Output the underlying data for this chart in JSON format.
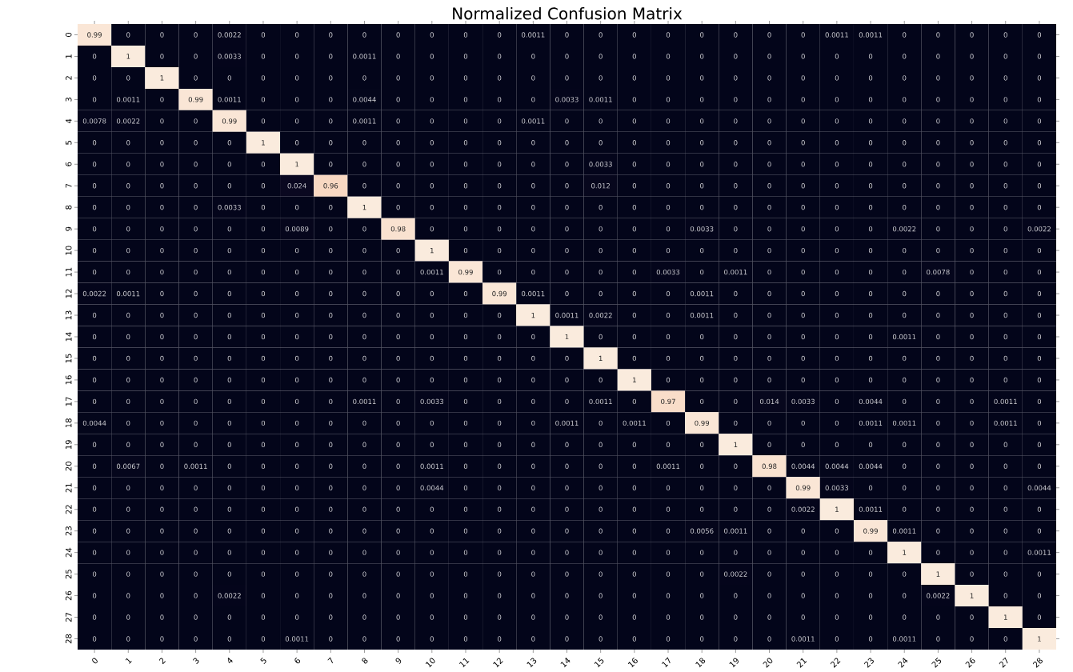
{
  "chart_data": {
    "type": "heatmap",
    "title": "Normalized Confusion Matrix",
    "categories": [
      "0",
      "1",
      "2",
      "3",
      "4",
      "5",
      "6",
      "7",
      "8",
      "9",
      "10",
      "11",
      "12",
      "13",
      "14",
      "15",
      "16",
      "17",
      "18",
      "19",
      "20",
      "21",
      "22",
      "23",
      "24",
      "25",
      "26",
      "27",
      "28"
    ],
    "y_categories": [
      "0",
      "1",
      "2",
      "3",
      "4",
      "5",
      "6",
      "7",
      "8",
      "9",
      "10",
      "11",
      "12",
      "13",
      "14",
      "15",
      "16",
      "17",
      "18",
      "19",
      "20",
      "21",
      "22",
      "23",
      "24",
      "25",
      "26",
      "27",
      "28"
    ],
    "data_labels": true,
    "cells": [
      [
        0.99,
        0,
        0,
        0,
        0.0022,
        0,
        0,
        0,
        0,
        0,
        0,
        0,
        0,
        0.0011,
        0,
        0,
        0,
        0,
        0,
        0,
        0,
        0,
        0.0011,
        0.0011,
        0,
        0,
        0,
        0,
        0
      ],
      [
        0,
        1,
        0,
        0,
        0.0033,
        0,
        0,
        0,
        0.0011,
        0,
        0,
        0,
        0,
        0,
        0,
        0,
        0,
        0,
        0,
        0,
        0,
        0,
        0,
        0,
        0,
        0,
        0,
        0,
        0
      ],
      [
        0,
        0,
        1,
        0,
        0,
        0,
        0,
        0,
        0,
        0,
        0,
        0,
        0,
        0,
        0,
        0,
        0,
        0,
        0,
        0,
        0,
        0,
        0,
        0,
        0,
        0,
        0,
        0,
        0
      ],
      [
        0,
        0.0011,
        0,
        0.99,
        0.0011,
        0,
        0,
        0,
        0.0044,
        0,
        0,
        0,
        0,
        0,
        0.0033,
        0.0011,
        0,
        0,
        0,
        0,
        0,
        0,
        0,
        0,
        0,
        0,
        0,
        0,
        0
      ],
      [
        0.0078,
        0.0022,
        0,
        0,
        0.99,
        0,
        0,
        0,
        0.0011,
        0,
        0,
        0,
        0,
        0.0011,
        0,
        0,
        0,
        0,
        0,
        0,
        0,
        0,
        0,
        0,
        0,
        0,
        0,
        0,
        0
      ],
      [
        0,
        0,
        0,
        0,
        0,
        1,
        0,
        0,
        0,
        0,
        0,
        0,
        0,
        0,
        0,
        0,
        0,
        0,
        0,
        0,
        0,
        0,
        0,
        0,
        0,
        0,
        0,
        0,
        0
      ],
      [
        0,
        0,
        0,
        0,
        0,
        0,
        1,
        0,
        0,
        0,
        0,
        0,
        0,
        0,
        0,
        0.0033,
        0,
        0,
        0,
        0,
        0,
        0,
        0,
        0,
        0,
        0,
        0,
        0,
        0
      ],
      [
        0,
        0,
        0,
        0,
        0,
        0,
        0.024,
        0.96,
        0,
        0,
        0,
        0,
        0,
        0,
        0,
        0.012,
        0,
        0,
        0,
        0,
        0,
        0,
        0,
        0,
        0,
        0,
        0,
        0,
        0
      ],
      [
        0,
        0,
        0,
        0,
        0.0033,
        0,
        0,
        0,
        1,
        0,
        0,
        0,
        0,
        0,
        0,
        0,
        0,
        0,
        0,
        0,
        0,
        0,
        0,
        0,
        0,
        0,
        0,
        0,
        0
      ],
      [
        0,
        0,
        0,
        0,
        0,
        0,
        0.0089,
        0,
        0,
        0.98,
        0,
        0,
        0,
        0,
        0,
        0,
        0,
        0,
        0.0033,
        0,
        0,
        0,
        0,
        0,
        0.0022,
        0,
        0,
        0,
        0.0022
      ],
      [
        0,
        0,
        0,
        0,
        0,
        0,
        0,
        0,
        0,
        0,
        1,
        0,
        0,
        0,
        0,
        0,
        0,
        0,
        0,
        0,
        0,
        0,
        0,
        0,
        0,
        0,
        0,
        0,
        0
      ],
      [
        0,
        0,
        0,
        0,
        0,
        0,
        0,
        0,
        0,
        0,
        0.0011,
        0.99,
        0,
        0,
        0,
        0,
        0,
        0.0033,
        0,
        0.0011,
        0,
        0,
        0,
        0,
        0,
        0.0078,
        0,
        0,
        0
      ],
      [
        0.0022,
        0.0011,
        0,
        0,
        0,
        0,
        0,
        0,
        0,
        0,
        0,
        0,
        0.99,
        0.0011,
        0,
        0,
        0,
        0,
        0.0011,
        0,
        0,
        0,
        0,
        0,
        0,
        0,
        0,
        0,
        0
      ],
      [
        0,
        0,
        0,
        0,
        0,
        0,
        0,
        0,
        0,
        0,
        0,
        0,
        0,
        1,
        0.0011,
        0.0022,
        0,
        0,
        0.0011,
        0,
        0,
        0,
        0,
        0,
        0,
        0,
        0,
        0,
        0
      ],
      [
        0,
        0,
        0,
        0,
        0,
        0,
        0,
        0,
        0,
        0,
        0,
        0,
        0,
        0,
        1,
        0,
        0,
        0,
        0,
        0,
        0,
        0,
        0,
        0,
        0.0011,
        0,
        0,
        0,
        0
      ],
      [
        0,
        0,
        0,
        0,
        0,
        0,
        0,
        0,
        0,
        0,
        0,
        0,
        0,
        0,
        0,
        1,
        0,
        0,
        0,
        0,
        0,
        0,
        0,
        0,
        0,
        0,
        0,
        0,
        0
      ],
      [
        0,
        0,
        0,
        0,
        0,
        0,
        0,
        0,
        0,
        0,
        0,
        0,
        0,
        0,
        0,
        0,
        1,
        0,
        0,
        0,
        0,
        0,
        0,
        0,
        0,
        0,
        0,
        0,
        0
      ],
      [
        0,
        0,
        0,
        0,
        0,
        0,
        0,
        0,
        0.0011,
        0,
        0.0033,
        0,
        0,
        0,
        0,
        0.0011,
        0,
        0.97,
        0,
        0,
        0.014,
        0.0033,
        0,
        0.0044,
        0,
        0,
        0,
        0.0011,
        0
      ],
      [
        0.0044,
        0,
        0,
        0,
        0,
        0,
        0,
        0,
        0,
        0,
        0,
        0,
        0,
        0,
        0.0011,
        0,
        0.0011,
        0,
        0.99,
        0,
        0,
        0,
        0,
        0.0011,
        0.0011,
        0,
        0,
        0.0011,
        0
      ],
      [
        0,
        0,
        0,
        0,
        0,
        0,
        0,
        0,
        0,
        0,
        0,
        0,
        0,
        0,
        0,
        0,
        0,
        0,
        0,
        1,
        0,
        0,
        0,
        0,
        0,
        0,
        0,
        0,
        0
      ],
      [
        0,
        0.0067,
        0,
        0.0011,
        0,
        0,
        0,
        0,
        0,
        0,
        0.0011,
        0,
        0,
        0,
        0,
        0,
        0,
        0.0011,
        0,
        0,
        0.98,
        0.0044,
        0.0044,
        0.0044,
        0,
        0,
        0,
        0,
        0
      ],
      [
        0,
        0,
        0,
        0,
        0,
        0,
        0,
        0,
        0,
        0,
        0.0044,
        0,
        0,
        0,
        0,
        0,
        0,
        0,
        0,
        0,
        0,
        0.99,
        0.0033,
        0,
        0,
        0,
        0,
        0,
        0.0044
      ],
      [
        0,
        0,
        0,
        0,
        0,
        0,
        0,
        0,
        0,
        0,
        0,
        0,
        0,
        0,
        0,
        0,
        0,
        0,
        0,
        0,
        0,
        0.0022,
        1,
        0.0011,
        0,
        0,
        0,
        0,
        0
      ],
      [
        0,
        0,
        0,
        0,
        0,
        0,
        0,
        0,
        0,
        0,
        0,
        0,
        0,
        0,
        0,
        0,
        0,
        0,
        0.0056,
        0.0011,
        0,
        0,
        0,
        0.99,
        0.0011,
        0,
        0,
        0,
        0
      ],
      [
        0,
        0,
        0,
        0,
        0,
        0,
        0,
        0,
        0,
        0,
        0,
        0,
        0,
        0,
        0,
        0,
        0,
        0,
        0,
        0,
        0,
        0,
        0,
        0,
        1,
        0,
        0,
        0,
        0.0011
      ],
      [
        0,
        0,
        0,
        0,
        0,
        0,
        0,
        0,
        0,
        0,
        0,
        0,
        0,
        0,
        0,
        0,
        0,
        0,
        0,
        0.0022,
        0,
        0,
        0,
        0,
        0,
        1,
        0,
        0,
        0
      ],
      [
        0,
        0,
        0,
        0,
        0.0022,
        0,
        0,
        0,
        0,
        0,
        0,
        0,
        0,
        0,
        0,
        0,
        0,
        0,
        0,
        0,
        0,
        0,
        0,
        0,
        0,
        0.0022,
        1,
        0,
        0
      ],
      [
        0,
        0,
        0,
        0,
        0,
        0,
        0,
        0,
        0,
        0,
        0,
        0,
        0,
        0,
        0,
        0,
        0,
        0,
        0,
        0,
        0,
        0,
        0,
        0,
        0,
        0,
        0,
        1,
        0
      ],
      [
        0,
        0,
        0,
        0,
        0,
        0,
        0.0011,
        0,
        0,
        0,
        0,
        0,
        0,
        0,
        0,
        0,
        0,
        0,
        0,
        0,
        0,
        0.0011,
        0,
        0,
        0.0011,
        0,
        0,
        0,
        1
      ]
    ]
  }
}
